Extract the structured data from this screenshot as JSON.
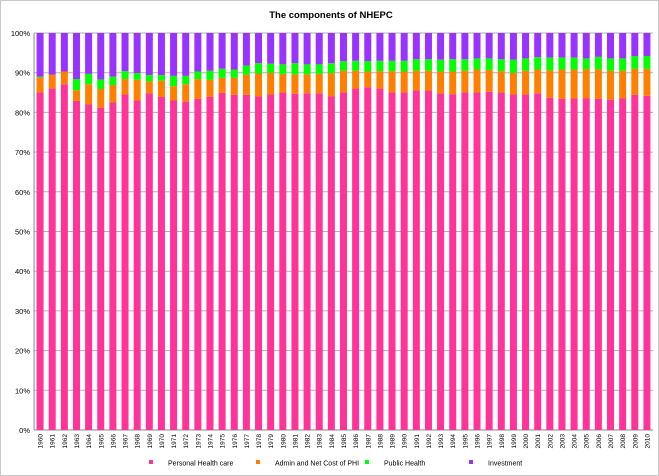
{
  "chart_data": {
    "type": "bar",
    "stacked": "percent",
    "title": "The components of NHEPC",
    "xlabel": "",
    "ylabel": "",
    "ylim": [
      0,
      100
    ],
    "y_ticks": [
      "0%",
      "10%",
      "20%",
      "30%",
      "40%",
      "50%",
      "60%",
      "70%",
      "80%",
      "90%",
      "100%"
    ],
    "grid": true,
    "legend_position": "bottom",
    "categories": [
      "1960",
      "1961",
      "1962",
      "1963",
      "1964",
      "1965",
      "1966",
      "1967",
      "1968",
      "1969",
      "1970",
      "1971",
      "1972",
      "1973",
      "1974",
      "1975",
      "1976",
      "1977",
      "1978",
      "1979",
      "1980",
      "1981",
      "1982",
      "1983",
      "1984",
      "1985",
      "1986",
      "1987",
      "1988",
      "1989",
      "1990",
      "1991",
      "1992",
      "1993",
      "1994",
      "1995",
      "1996",
      "1997",
      "1998",
      "1999",
      "2000",
      "2001",
      "2002",
      "2003",
      "2004",
      "2005",
      "2006",
      "2007",
      "2008",
      "2009",
      "2010"
    ],
    "series": [
      {
        "name": "Personal Health care",
        "color": "#ff3399",
        "values": [
          85.0,
          86.0,
          87.1,
          82.9,
          82.0,
          81.2,
          82.5,
          84.5,
          83.0,
          84.8,
          83.9,
          83.0,
          82.7,
          83.4,
          83.9,
          84.9,
          84.4,
          84.4,
          84.0,
          84.5,
          85.0,
          84.7,
          84.8,
          84.8,
          84.0,
          85.0,
          86.0,
          86.3,
          86.0,
          85.0,
          85.0,
          85.5,
          85.5,
          84.8,
          84.6,
          85.0,
          85.0,
          85.2,
          85.0,
          84.5,
          84.5,
          84.8,
          83.7,
          83.4,
          83.5,
          83.5,
          83.4,
          83.2,
          83.5,
          84.4,
          84.2
        ]
      },
      {
        "name": "Admin and Net Cost of PHI",
        "color": "#ff7f00",
        "values": [
          3.8,
          3.5,
          3.2,
          2.7,
          5.1,
          4.7,
          4.4,
          3.9,
          5.2,
          3.0,
          4.1,
          3.6,
          4.4,
          5.0,
          4.3,
          3.8,
          4.3,
          5.1,
          5.8,
          5.5,
          4.7,
          4.9,
          4.8,
          4.9,
          5.9,
          5.5,
          4.5,
          4.0,
          4.4,
          5.4,
          5.3,
          5.0,
          5.0,
          5.5,
          5.7,
          5.5,
          5.8,
          5.5,
          5.4,
          5.5,
          6.0,
          6.0,
          6.9,
          7.4,
          7.3,
          7.4,
          7.5,
          7.3,
          7.0,
          6.6,
          6.8
        ]
      },
      {
        "name": "Public Health",
        "color": "#00ff00",
        "values": [
          0.2,
          0.0,
          0.0,
          2.8,
          2.6,
          2.4,
          2.1,
          2.0,
          1.7,
          1.6,
          1.4,
          2.6,
          2.1,
          1.9,
          2.3,
          2.3,
          2.1,
          2.3,
          2.6,
          2.3,
          2.4,
          2.8,
          2.5,
          2.4,
          2.5,
          2.4,
          2.5,
          2.6,
          2.6,
          2.6,
          2.7,
          2.9,
          2.9,
          3.0,
          3.1,
          2.9,
          2.8,
          2.9,
          3.0,
          3.3,
          3.1,
          3.1,
          3.2,
          3.0,
          3.0,
          2.7,
          3.1,
          3.1,
          3.1,
          3.2,
          3.2
        ]
      },
      {
        "name": "Investment",
        "color": "#9933ff",
        "values": [
          11.0,
          10.5,
          9.7,
          11.6,
          10.3,
          11.7,
          11.0,
          9.6,
          10.1,
          10.6,
          10.6,
          10.8,
          10.8,
          9.7,
          9.5,
          9.0,
          9.2,
          8.2,
          7.6,
          7.7,
          7.9,
          7.6,
          7.9,
          7.9,
          7.6,
          7.1,
          7.0,
          7.1,
          7.0,
          7.0,
          7.0,
          6.6,
          6.6,
          6.7,
          6.6,
          6.6,
          6.4,
          6.4,
          6.6,
          6.7,
          6.4,
          6.1,
          6.2,
          6.2,
          6.2,
          6.4,
          6.0,
          6.4,
          6.4,
          5.8,
          5.8
        ]
      }
    ]
  }
}
